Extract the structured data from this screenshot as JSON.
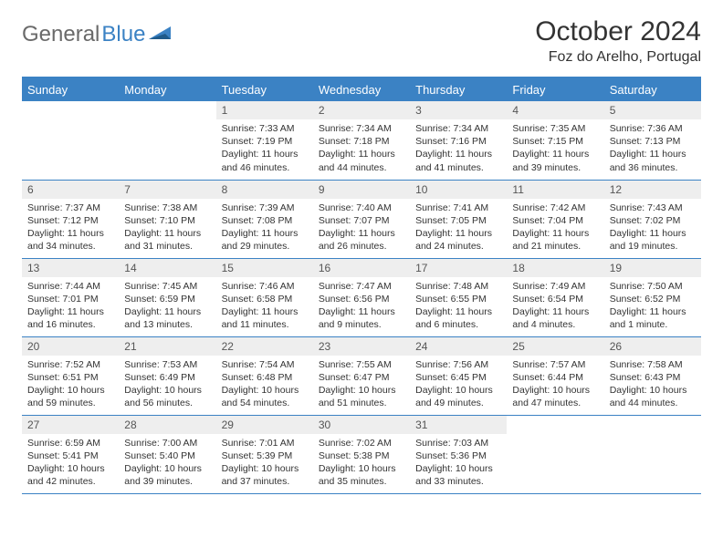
{
  "logo": {
    "word1": "General",
    "word2": "Blue"
  },
  "header": {
    "title": "October 2024",
    "location": "Foz do Arelho, Portugal"
  },
  "colors": {
    "header_bg": "#3b82c4",
    "header_text": "#ffffff",
    "daynum_bg": "#eeeeee",
    "border": "#3b82c4",
    "logo_gray": "#6a6a6a",
    "logo_blue": "#3b82c4"
  },
  "weekdays": [
    "Sunday",
    "Monday",
    "Tuesday",
    "Wednesday",
    "Thursday",
    "Friday",
    "Saturday"
  ],
  "weeks": [
    [
      null,
      null,
      {
        "n": "1",
        "sr": "Sunrise: 7:33 AM",
        "ss": "Sunset: 7:19 PM",
        "dl": "Daylight: 11 hours and 46 minutes."
      },
      {
        "n": "2",
        "sr": "Sunrise: 7:34 AM",
        "ss": "Sunset: 7:18 PM",
        "dl": "Daylight: 11 hours and 44 minutes."
      },
      {
        "n": "3",
        "sr": "Sunrise: 7:34 AM",
        "ss": "Sunset: 7:16 PM",
        "dl": "Daylight: 11 hours and 41 minutes."
      },
      {
        "n": "4",
        "sr": "Sunrise: 7:35 AM",
        "ss": "Sunset: 7:15 PM",
        "dl": "Daylight: 11 hours and 39 minutes."
      },
      {
        "n": "5",
        "sr": "Sunrise: 7:36 AM",
        "ss": "Sunset: 7:13 PM",
        "dl": "Daylight: 11 hours and 36 minutes."
      }
    ],
    [
      {
        "n": "6",
        "sr": "Sunrise: 7:37 AM",
        "ss": "Sunset: 7:12 PM",
        "dl": "Daylight: 11 hours and 34 minutes."
      },
      {
        "n": "7",
        "sr": "Sunrise: 7:38 AM",
        "ss": "Sunset: 7:10 PM",
        "dl": "Daylight: 11 hours and 31 minutes."
      },
      {
        "n": "8",
        "sr": "Sunrise: 7:39 AM",
        "ss": "Sunset: 7:08 PM",
        "dl": "Daylight: 11 hours and 29 minutes."
      },
      {
        "n": "9",
        "sr": "Sunrise: 7:40 AM",
        "ss": "Sunset: 7:07 PM",
        "dl": "Daylight: 11 hours and 26 minutes."
      },
      {
        "n": "10",
        "sr": "Sunrise: 7:41 AM",
        "ss": "Sunset: 7:05 PM",
        "dl": "Daylight: 11 hours and 24 minutes."
      },
      {
        "n": "11",
        "sr": "Sunrise: 7:42 AM",
        "ss": "Sunset: 7:04 PM",
        "dl": "Daylight: 11 hours and 21 minutes."
      },
      {
        "n": "12",
        "sr": "Sunrise: 7:43 AM",
        "ss": "Sunset: 7:02 PM",
        "dl": "Daylight: 11 hours and 19 minutes."
      }
    ],
    [
      {
        "n": "13",
        "sr": "Sunrise: 7:44 AM",
        "ss": "Sunset: 7:01 PM",
        "dl": "Daylight: 11 hours and 16 minutes."
      },
      {
        "n": "14",
        "sr": "Sunrise: 7:45 AM",
        "ss": "Sunset: 6:59 PM",
        "dl": "Daylight: 11 hours and 13 minutes."
      },
      {
        "n": "15",
        "sr": "Sunrise: 7:46 AM",
        "ss": "Sunset: 6:58 PM",
        "dl": "Daylight: 11 hours and 11 minutes."
      },
      {
        "n": "16",
        "sr": "Sunrise: 7:47 AM",
        "ss": "Sunset: 6:56 PM",
        "dl": "Daylight: 11 hours and 9 minutes."
      },
      {
        "n": "17",
        "sr": "Sunrise: 7:48 AM",
        "ss": "Sunset: 6:55 PM",
        "dl": "Daylight: 11 hours and 6 minutes."
      },
      {
        "n": "18",
        "sr": "Sunrise: 7:49 AM",
        "ss": "Sunset: 6:54 PM",
        "dl": "Daylight: 11 hours and 4 minutes."
      },
      {
        "n": "19",
        "sr": "Sunrise: 7:50 AM",
        "ss": "Sunset: 6:52 PM",
        "dl": "Daylight: 11 hours and 1 minute."
      }
    ],
    [
      {
        "n": "20",
        "sr": "Sunrise: 7:52 AM",
        "ss": "Sunset: 6:51 PM",
        "dl": "Daylight: 10 hours and 59 minutes."
      },
      {
        "n": "21",
        "sr": "Sunrise: 7:53 AM",
        "ss": "Sunset: 6:49 PM",
        "dl": "Daylight: 10 hours and 56 minutes."
      },
      {
        "n": "22",
        "sr": "Sunrise: 7:54 AM",
        "ss": "Sunset: 6:48 PM",
        "dl": "Daylight: 10 hours and 54 minutes."
      },
      {
        "n": "23",
        "sr": "Sunrise: 7:55 AM",
        "ss": "Sunset: 6:47 PM",
        "dl": "Daylight: 10 hours and 51 minutes."
      },
      {
        "n": "24",
        "sr": "Sunrise: 7:56 AM",
        "ss": "Sunset: 6:45 PM",
        "dl": "Daylight: 10 hours and 49 minutes."
      },
      {
        "n": "25",
        "sr": "Sunrise: 7:57 AM",
        "ss": "Sunset: 6:44 PM",
        "dl": "Daylight: 10 hours and 47 minutes."
      },
      {
        "n": "26",
        "sr": "Sunrise: 7:58 AM",
        "ss": "Sunset: 6:43 PM",
        "dl": "Daylight: 10 hours and 44 minutes."
      }
    ],
    [
      {
        "n": "27",
        "sr": "Sunrise: 6:59 AM",
        "ss": "Sunset: 5:41 PM",
        "dl": "Daylight: 10 hours and 42 minutes."
      },
      {
        "n": "28",
        "sr": "Sunrise: 7:00 AM",
        "ss": "Sunset: 5:40 PM",
        "dl": "Daylight: 10 hours and 39 minutes."
      },
      {
        "n": "29",
        "sr": "Sunrise: 7:01 AM",
        "ss": "Sunset: 5:39 PM",
        "dl": "Daylight: 10 hours and 37 minutes."
      },
      {
        "n": "30",
        "sr": "Sunrise: 7:02 AM",
        "ss": "Sunset: 5:38 PM",
        "dl": "Daylight: 10 hours and 35 minutes."
      },
      {
        "n": "31",
        "sr": "Sunrise: 7:03 AM",
        "ss": "Sunset: 5:36 PM",
        "dl": "Daylight: 10 hours and 33 minutes."
      },
      null,
      null
    ]
  ]
}
